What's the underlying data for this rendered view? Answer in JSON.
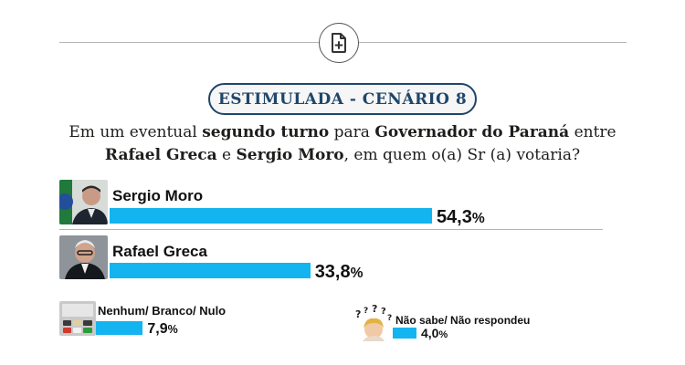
{
  "header": {
    "icon": "add-document-icon",
    "badge_label": "ESTIMULADA - CENÁRIO 8"
  },
  "question": {
    "line1_part1": "Em um eventual ",
    "line1_bold1": "segundo turno",
    "line1_part2": " para ",
    "line1_bold2": "Governador do Paraná",
    "line1_part3": " entre",
    "line2_bold1": "Rafael Greca",
    "line2_part1": " e ",
    "line2_bold2": "Sergio Moro",
    "line2_part2": ", em quem o(a) Sr (a) votaria?"
  },
  "colors": {
    "bar": "#13b4ef",
    "badge_text": "#1f466a",
    "divider": "#b5b5b5"
  },
  "chart_data": {
    "type": "bar",
    "title": "ESTIMULADA - CENÁRIO 8",
    "unit": "%",
    "xlim": [
      0,
      100
    ],
    "categories": [
      "Sergio Moro",
      "Rafael Greca",
      "Nenhum/ Branco/ Nulo",
      "Não sabe/ Não respondeu"
    ],
    "values": [
      54.3,
      33.8,
      7.9,
      4.0
    ],
    "value_labels": [
      "54,3",
      "33,8",
      "7,9",
      "4,0"
    ]
  }
}
